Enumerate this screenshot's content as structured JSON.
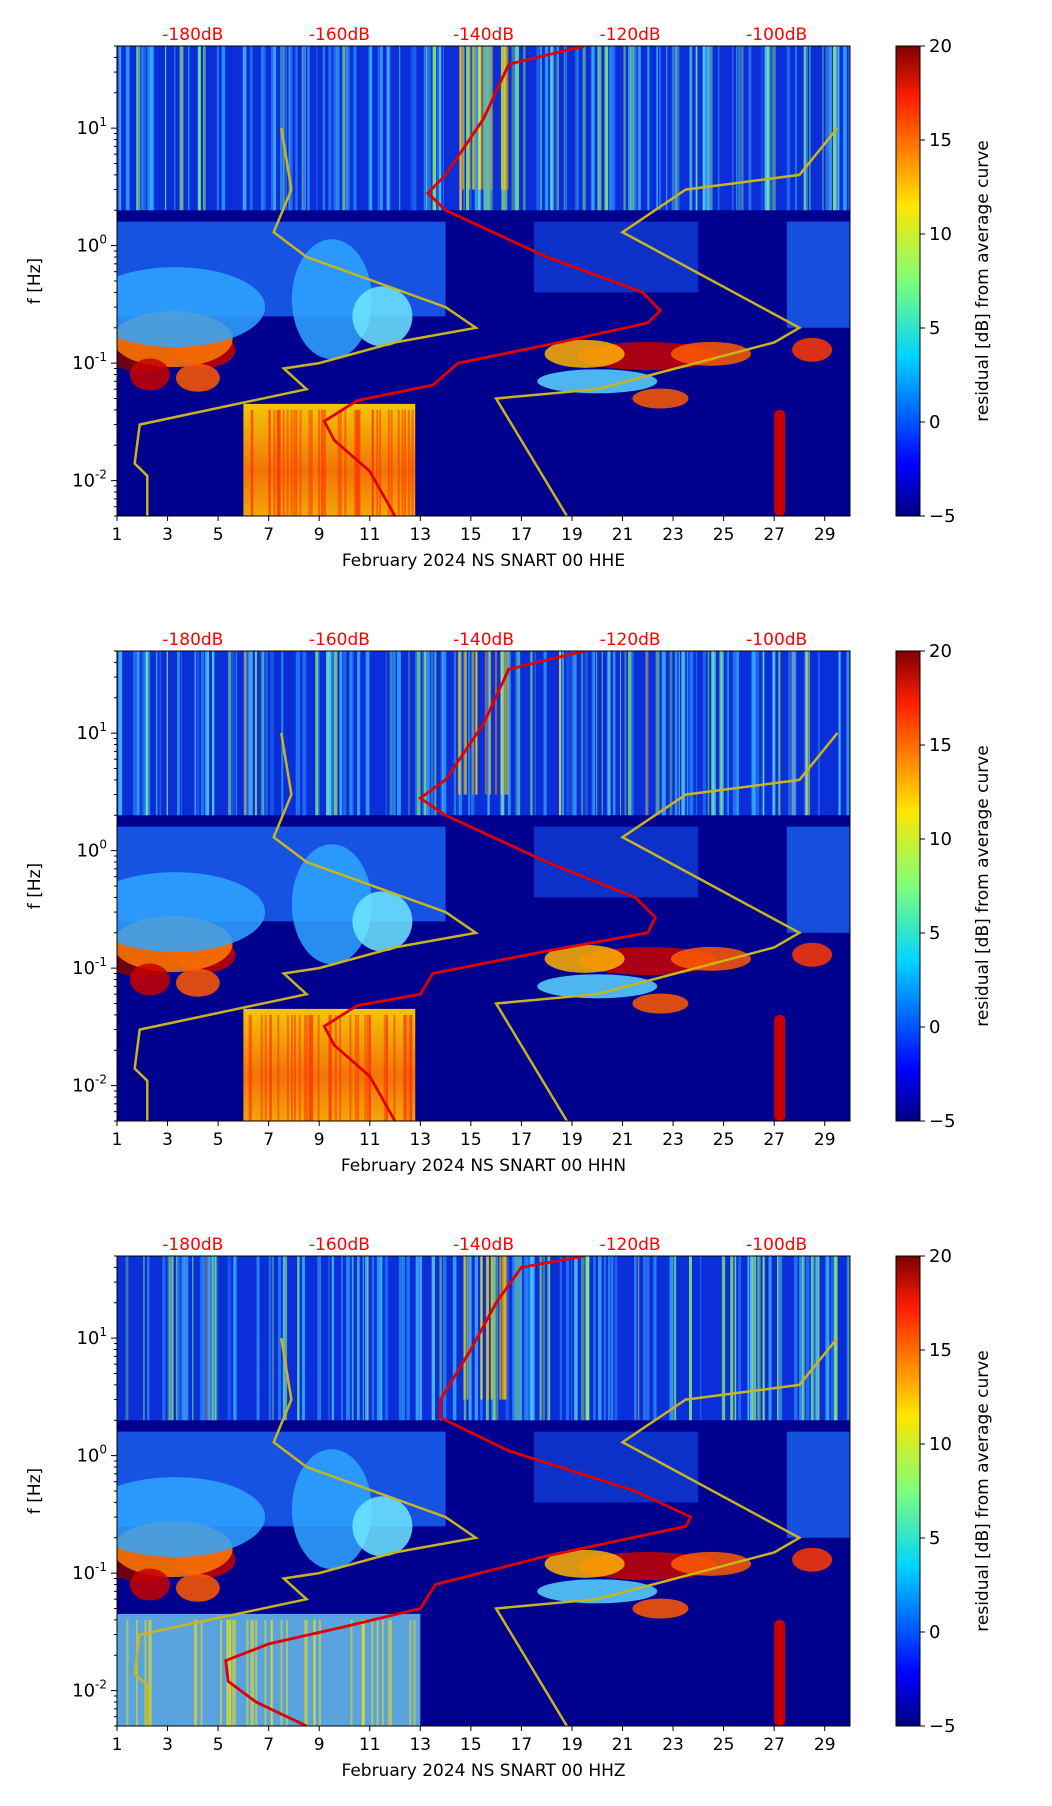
{
  "chart_data": [
    {
      "type": "heatmap",
      "xlabel": "February 2024 NS SNART 00 HHE",
      "ylabel": "f [Hz]",
      "x_ticks": [
        "1",
        "3",
        "5",
        "7",
        "9",
        "11",
        "13",
        "15",
        "17",
        "19",
        "21",
        "23",
        "25",
        "27",
        "29"
      ],
      "x_range": [
        1,
        30
      ],
      "y_scale": "log",
      "y_range": [
        0.005,
        50
      ],
      "y_tick_labels": [
        "10^-2",
        "10^-1",
        "10^0",
        "10^1"
      ],
      "top_labels": [
        "-180dB",
        "-160dB",
        "-140dB",
        "-120dB",
        "-100dB"
      ],
      "top_label_positions_day": [
        4,
        9.8,
        15.5,
        21.3,
        27.1
      ],
      "colorbar_label": "residual [dB] from average curve",
      "colorbar_range": [
        -5,
        20
      ],
      "colorbar_ticks": [
        "20",
        "15",
        "10",
        "5",
        "0",
        "−5"
      ],
      "red_curve": [
        [
          12,
          0.005
        ],
        [
          11,
          0.012
        ],
        [
          9.6,
          0.022
        ],
        [
          9.2,
          0.032
        ],
        [
          10.5,
          0.048
        ],
        [
          13.5,
          0.065
        ],
        [
          14.5,
          0.1
        ],
        [
          18.5,
          0.15
        ],
        [
          22,
          0.22
        ],
        [
          22.5,
          0.28
        ],
        [
          21.8,
          0.4
        ],
        [
          18,
          0.8
        ],
        [
          14,
          2.0
        ],
        [
          13.3,
          2.8
        ],
        [
          14,
          4
        ],
        [
          15.5,
          12
        ],
        [
          16.5,
          35
        ],
        [
          19.5,
          50
        ]
      ],
      "yellow_curve": [
        [
          2.2,
          0.005
        ],
        [
          2.2,
          0.011
        ],
        [
          1.7,
          0.014
        ],
        [
          1.9,
          0.03
        ],
        [
          8.5,
          0.06
        ],
        [
          7.6,
          0.09
        ],
        [
          9,
          0.1
        ],
        [
          12,
          0.15
        ],
        [
          15.2,
          0.2
        ],
        [
          14,
          0.3
        ],
        [
          8.5,
          0.8
        ],
        [
          7.2,
          1.3
        ],
        [
          7.9,
          3
        ],
        [
          7.5,
          10
        ],
        [
          7.5,
          10
        ],
        [
          7.5,
          10
        ]
      ],
      "yellow_curve_right": [
        [
          18.8,
          0.005
        ],
        [
          16,
          0.05
        ],
        [
          20,
          0.06
        ],
        [
          27,
          0.15
        ],
        [
          28,
          0.2
        ],
        [
          21,
          1.3
        ],
        [
          23.5,
          3
        ],
        [
          28,
          4
        ],
        [
          29.5,
          10
        ]
      ]
    },
    {
      "type": "heatmap",
      "xlabel": "February 2024 NS SNART 00 HHN",
      "ylabel": "f [Hz]",
      "x_ticks": [
        "1",
        "3",
        "5",
        "7",
        "9",
        "11",
        "13",
        "15",
        "17",
        "19",
        "21",
        "23",
        "25",
        "27",
        "29"
      ],
      "x_range": [
        1,
        30
      ],
      "y_scale": "log",
      "y_range": [
        0.005,
        50
      ],
      "y_tick_labels": [
        "10^-2",
        "10^-1",
        "10^0",
        "10^1"
      ],
      "top_labels": [
        "-180dB",
        "-160dB",
        "-140dB",
        "-120dB",
        "-100dB"
      ],
      "top_label_positions_day": [
        4,
        9.8,
        15.5,
        21.3,
        27.1
      ],
      "colorbar_label": "residual [dB] from average curve",
      "colorbar_range": [
        -5,
        20
      ],
      "colorbar_ticks": [
        "20",
        "15",
        "10",
        "5",
        "0",
        "−5"
      ],
      "red_curve": [
        [
          12,
          0.005
        ],
        [
          11,
          0.012
        ],
        [
          9.6,
          0.022
        ],
        [
          9.2,
          0.032
        ],
        [
          10.5,
          0.048
        ],
        [
          13,
          0.06
        ],
        [
          13.5,
          0.09
        ],
        [
          18,
          0.14
        ],
        [
          22,
          0.2
        ],
        [
          22.3,
          0.27
        ],
        [
          21.5,
          0.4
        ],
        [
          18,
          0.8
        ],
        [
          14,
          2.0
        ],
        [
          13,
          2.8
        ],
        [
          14,
          4
        ],
        [
          15.5,
          12
        ],
        [
          16.5,
          35
        ],
        [
          19.5,
          50
        ]
      ],
      "yellow_curve": [
        [
          2.2,
          0.005
        ],
        [
          2.2,
          0.011
        ],
        [
          1.7,
          0.014
        ],
        [
          1.9,
          0.03
        ],
        [
          8.5,
          0.06
        ],
        [
          7.6,
          0.09
        ],
        [
          9,
          0.1
        ],
        [
          12,
          0.15
        ],
        [
          15.2,
          0.2
        ],
        [
          14,
          0.3
        ],
        [
          8.5,
          0.8
        ],
        [
          7.2,
          1.3
        ],
        [
          7.9,
          3
        ],
        [
          7.5,
          10
        ],
        [
          7.5,
          10
        ],
        [
          7.5,
          10
        ]
      ],
      "yellow_curve_right": [
        [
          18.8,
          0.005
        ],
        [
          16,
          0.05
        ],
        [
          20,
          0.06
        ],
        [
          27,
          0.15
        ],
        [
          28,
          0.2
        ],
        [
          21,
          1.3
        ],
        [
          23.5,
          3
        ],
        [
          28,
          4
        ],
        [
          29.5,
          10
        ]
      ]
    },
    {
      "type": "heatmap",
      "xlabel": "February 2024 NS SNART 00 HHZ",
      "ylabel": "f [Hz]",
      "x_ticks": [
        "1",
        "3",
        "5",
        "7",
        "9",
        "11",
        "13",
        "15",
        "17",
        "19",
        "21",
        "23",
        "25",
        "27",
        "29"
      ],
      "x_range": [
        1,
        30
      ],
      "y_scale": "log",
      "y_range": [
        0.005,
        50
      ],
      "y_tick_labels": [
        "10^-2",
        "10^-1",
        "10^0",
        "10^1"
      ],
      "top_labels": [
        "-180dB",
        "-160dB",
        "-140dB",
        "-120dB",
        "-100dB"
      ],
      "top_label_positions_day": [
        4,
        9.8,
        15.5,
        21.3,
        27.1
      ],
      "colorbar_label": "residual [dB] from average curve",
      "colorbar_range": [
        -5,
        20
      ],
      "colorbar_ticks": [
        "20",
        "15",
        "10",
        "5",
        "0",
        "−5"
      ],
      "red_curve": [
        [
          8.5,
          0.005
        ],
        [
          6.5,
          0.008
        ],
        [
          5.4,
          0.012
        ],
        [
          5.3,
          0.018
        ],
        [
          7,
          0.025
        ],
        [
          10,
          0.035
        ],
        [
          13,
          0.05
        ],
        [
          13.6,
          0.08
        ],
        [
          18,
          0.14
        ],
        [
          23.5,
          0.25
        ],
        [
          23.7,
          0.3
        ],
        [
          21.5,
          0.5
        ],
        [
          16.5,
          1.1
        ],
        [
          13.8,
          2.1
        ],
        [
          13.8,
          3
        ],
        [
          15,
          8
        ],
        [
          16,
          20
        ],
        [
          17,
          40
        ],
        [
          19.5,
          50
        ]
      ],
      "yellow_curve": [
        [
          2.2,
          0.005
        ],
        [
          2.2,
          0.011
        ],
        [
          1.7,
          0.014
        ],
        [
          1.9,
          0.03
        ],
        [
          8.5,
          0.06
        ],
        [
          7.6,
          0.09
        ],
        [
          9,
          0.1
        ],
        [
          12,
          0.15
        ],
        [
          15.2,
          0.2
        ],
        [
          14,
          0.3
        ],
        [
          8.5,
          0.8
        ],
        [
          7.2,
          1.3
        ],
        [
          7.9,
          3
        ],
        [
          7.5,
          10
        ],
        [
          7.5,
          10
        ],
        [
          7.5,
          10
        ]
      ],
      "yellow_curve_right": [
        [
          18.8,
          0.005
        ],
        [
          16,
          0.05
        ],
        [
          20,
          0.06
        ],
        [
          27,
          0.15
        ],
        [
          28,
          0.2
        ],
        [
          21,
          1.3
        ],
        [
          23.5,
          3
        ],
        [
          28,
          4
        ],
        [
          29.5,
          10
        ]
      ]
    }
  ]
}
